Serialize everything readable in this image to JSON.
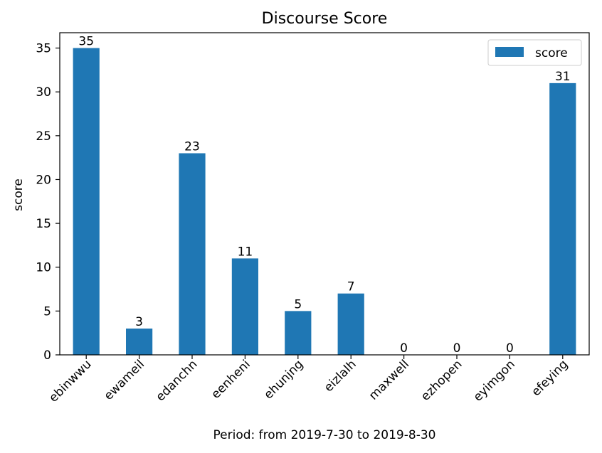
{
  "chart_data": {
    "type": "bar",
    "title": "Discourse Score",
    "xlabel": "Period: from 2019-7-30 to 2019-8-30",
    "ylabel": "score",
    "categories": [
      "ebinwwu",
      "ewameil",
      "edanchn",
      "eenheni",
      "ehunjng",
      "eizlalh",
      "maxwell",
      "ezhopen",
      "eyimgon",
      "efeying"
    ],
    "series": [
      {
        "name": "score",
        "values": [
          35,
          3,
          23,
          11,
          5,
          7,
          0,
          0,
          0,
          31
        ],
        "color": "#1f77b4"
      }
    ],
    "ylim": [
      0,
      36.75
    ],
    "yticks": [
      0,
      5,
      10,
      15,
      20,
      25,
      30,
      35
    ],
    "grid": false,
    "legend": "top-right",
    "data_labels": true
  }
}
